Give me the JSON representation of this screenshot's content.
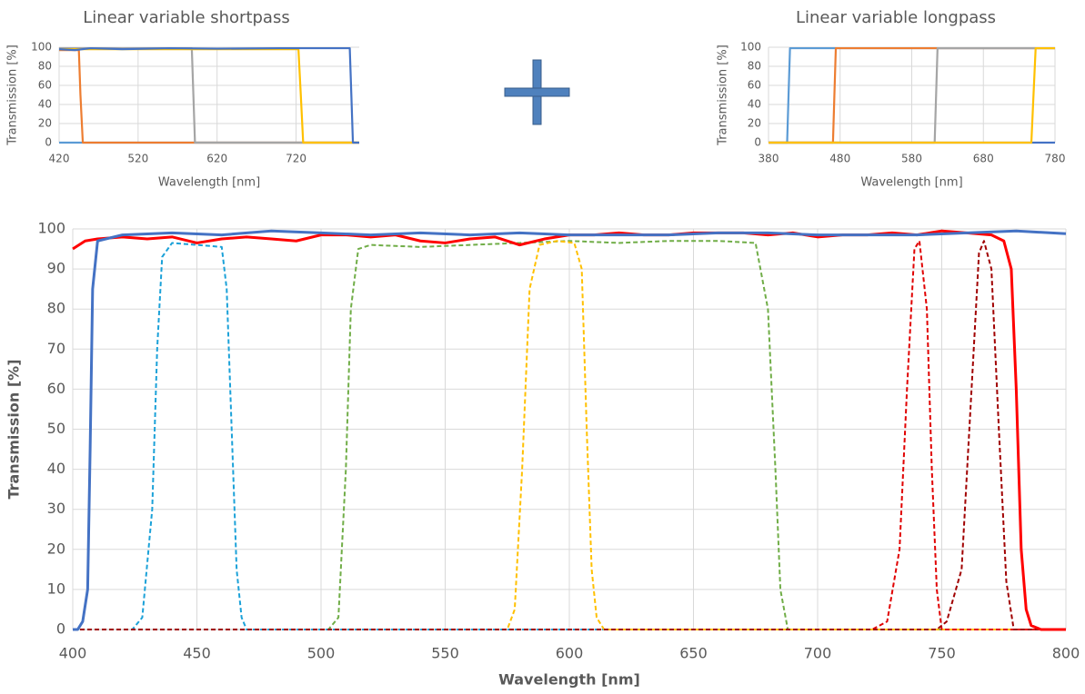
{
  "chart_data": [
    {
      "type": "line",
      "title": "Linear variable shortpass",
      "x_label": "Wavelength [nm]",
      "y_label": "Transmission [%]",
      "xlim": [
        420,
        800
      ],
      "xticks": [
        420,
        520,
        620,
        720
      ],
      "ylim": [
        0,
        100
      ],
      "yticks": [
        0,
        20,
        40,
        60,
        80,
        100
      ],
      "grid": true,
      "series": [
        {
          "color": "#5b9bd5",
          "dash": false,
          "x": [
            420,
            800
          ],
          "values": [
            0,
            0
          ]
        },
        {
          "color": "#ed7d31",
          "dash": false,
          "x": [
            420,
            445,
            447,
            450,
            800
          ],
          "values": [
            97,
            97,
            50,
            0,
            0
          ]
        },
        {
          "color": "#a5a5a5",
          "dash": false,
          "x": [
            420,
            588,
            590,
            592,
            800
          ],
          "values": [
            99,
            99,
            50,
            0,
            0
          ]
        },
        {
          "color": "#ffc000",
          "dash": false,
          "x": [
            420,
            723,
            726,
            729,
            800
          ],
          "values": [
            98,
            98,
            50,
            0,
            0
          ]
        },
        {
          "color": "#4472c4",
          "dash": false,
          "x": [
            420,
            440,
            460,
            500,
            560,
            620,
            700,
            760,
            788,
            790,
            792,
            800
          ],
          "values": [
            98,
            97,
            99,
            98,
            99,
            98.5,
            99,
            99,
            99,
            50,
            0,
            0
          ]
        }
      ]
    },
    {
      "type": "line",
      "title": "Linear variable longpass",
      "x_label": "Wavelength [nm]",
      "y_label": "Transmission [%]",
      "xlim": [
        380,
        780
      ],
      "xticks": [
        380,
        480,
        580,
        680,
        780
      ],
      "ylim": [
        0,
        100
      ],
      "yticks": [
        0,
        20,
        40,
        60,
        80,
        100
      ],
      "grid": true,
      "series": [
        {
          "color": "#4472c4",
          "dash": false,
          "x": [
            380,
            780
          ],
          "values": [
            0,
            0
          ]
        },
        {
          "color": "#5b9bd5",
          "dash": false,
          "x": [
            380,
            406,
            408,
            410,
            780
          ],
          "values": [
            0,
            0,
            50,
            99,
            99
          ]
        },
        {
          "color": "#ed7d31",
          "dash": false,
          "x": [
            380,
            470,
            472,
            474,
            780
          ],
          "values": [
            0,
            0,
            50,
            99,
            99
          ]
        },
        {
          "color": "#a5a5a5",
          "dash": false,
          "x": [
            380,
            612,
            614,
            616,
            780
          ],
          "values": [
            0,
            0,
            50,
            99,
            99
          ]
        },
        {
          "color": "#ffc000",
          "dash": false,
          "x": [
            380,
            747,
            750,
            753,
            780
          ],
          "values": [
            0,
            0,
            50,
            99,
            99
          ]
        }
      ]
    },
    {
      "type": "line",
      "x_label": "Wavelength [nm]",
      "y_label": "Transmission [%]",
      "xlim": [
        400,
        800
      ],
      "xticks": [
        400,
        450,
        500,
        550,
        600,
        650,
        700,
        750,
        800
      ],
      "ylim": [
        0,
        100
      ],
      "yticks": [
        0,
        10,
        20,
        30,
        40,
        50,
        60,
        70,
        80,
        90,
        100
      ],
      "grid": true,
      "series": [
        {
          "color": "#1ba1d8",
          "dash": true,
          "x": [
            400,
            424,
            428,
            432,
            434,
            436,
            440,
            450,
            460,
            462,
            464,
            466,
            468,
            470,
            800
          ],
          "values": [
            0,
            0,
            3,
            30,
            70,
            93,
            96.5,
            96,
            95.5,
            85,
            50,
            15,
            3,
            0,
            0
          ]
        },
        {
          "color": "#70ad47",
          "dash": true,
          "x": [
            400,
            503,
            507,
            510,
            512,
            515,
            520,
            540,
            560,
            580,
            600,
            620,
            640,
            660,
            675,
            680,
            683,
            685,
            688,
            800
          ],
          "values": [
            0,
            0,
            3,
            40,
            80,
            95,
            96,
            95.5,
            96,
            96.5,
            97,
            96.5,
            97,
            97,
            96.5,
            80,
            40,
            10,
            0,
            0
          ]
        },
        {
          "color": "#ffc000",
          "dash": true,
          "x": [
            400,
            575,
            578,
            581,
            584,
            588,
            595,
            602,
            605,
            607,
            609,
            611,
            614,
            800
          ],
          "values": [
            0,
            0,
            5,
            40,
            85,
            96,
            97,
            96.5,
            90,
            50,
            15,
            3,
            0,
            0
          ]
        },
        {
          "color": "#e00000",
          "dash": true,
          "x": [
            400,
            722,
            728,
            733,
            736,
            739,
            741,
            744,
            746,
            748,
            750,
            800
          ],
          "values": [
            0,
            0,
            2,
            20,
            60,
            95,
            97,
            80,
            40,
            10,
            0,
            0
          ]
        },
        {
          "color": "#a00000",
          "dash": true,
          "x": [
            400,
            748,
            752,
            758,
            762,
            765,
            767,
            770,
            773,
            776,
            779,
            800
          ],
          "values": [
            0,
            0,
            2,
            15,
            60,
            94,
            97,
            90,
            50,
            12,
            0,
            0
          ]
        },
        {
          "color": "#ff0000",
          "dash": false,
          "x": [
            400,
            405,
            410,
            420,
            430,
            440,
            450,
            460,
            470,
            480,
            490,
            500,
            510,
            520,
            530,
            540,
            550,
            560,
            570,
            580,
            590,
            600,
            610,
            620,
            630,
            640,
            650,
            660,
            670,
            680,
            690,
            700,
            710,
            720,
            730,
            740,
            750,
            760,
            770,
            775,
            778,
            780,
            782,
            784,
            786,
            790,
            800
          ],
          "values": [
            95,
            97,
            97.5,
            98,
            97.5,
            98,
            96.5,
            97.5,
            98,
            97.5,
            97,
            98.5,
            98.5,
            98,
            98.5,
            97,
            96.5,
            97.5,
            98,
            96,
            97.5,
            98.5,
            98.5,
            99,
            98.5,
            98.5,
            99,
            99,
            99,
            98.5,
            99,
            98,
            98.5,
            98.5,
            99,
            98.5,
            99.5,
            99,
            98.5,
            97,
            90,
            60,
            20,
            5,
            1,
            0,
            0
          ]
        },
        {
          "color": "#4472c4",
          "dash": false,
          "x": [
            400,
            402,
            404,
            406,
            407,
            408,
            410,
            420,
            440,
            460,
            480,
            500,
            520,
            540,
            560,
            580,
            600,
            620,
            640,
            660,
            680,
            700,
            720,
            740,
            760,
            780,
            800
          ],
          "values": [
            0,
            0,
            2,
            10,
            45,
            85,
            97,
            98.5,
            99,
            98.5,
            99.5,
            99,
            98.5,
            99,
            98.5,
            99,
            98.5,
            98.5,
            98.5,
            99,
            99,
            98.5,
            98.5,
            98.5,
            99,
            99.5,
            98.8
          ]
        }
      ]
    }
  ]
}
